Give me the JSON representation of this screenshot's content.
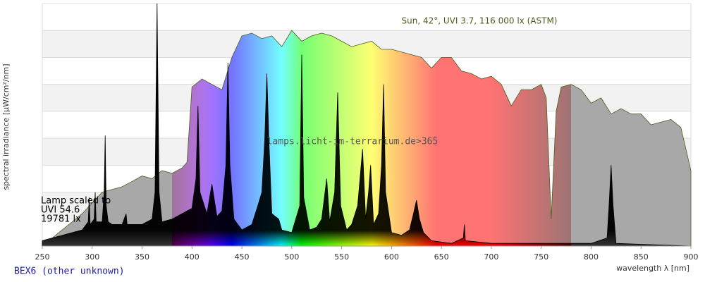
{
  "chart_data": {
    "type": "spectrum",
    "xlim": [
      250,
      900
    ],
    "xticks": [
      250,
      300,
      350,
      400,
      450,
      500,
      550,
      600,
      650,
      700,
      750,
      800,
      850,
      900
    ],
    "ylim": [
      0,
      9
    ],
    "yticks": [
      0,
      1,
      2,
      3,
      4,
      5,
      6,
      7,
      8,
      9
    ],
    "ytick_labels": false,
    "grid": "bands",
    "xlabel": "wavelength λ [nm]",
    "ylabel": "spectral irradiance [µW/cm²/nm]",
    "watermark": "lamps.licht-im-terrarium.de>365",
    "source": "BEX6 (other unknown)",
    "visible_range": [
      380,
      780
    ],
    "series": [
      {
        "label": "Sun, 42°, UVI 3.7, 116 000 lx (ASTM)",
        "color": "#4b5e1e",
        "x": [
          250,
          260,
          270,
          280,
          290,
          300,
          310,
          320,
          330,
          340,
          350,
          360,
          370,
          380,
          390,
          395,
          400,
          410,
          420,
          430,
          440,
          450,
          460,
          470,
          480,
          490,
          500,
          510,
          520,
          530,
          540,
          550,
          560,
          570,
          580,
          590,
          600,
          610,
          620,
          630,
          640,
          650,
          660,
          670,
          680,
          690,
          700,
          710,
          720,
          730,
          740,
          750,
          755,
          760,
          765,
          770,
          780,
          790,
          800,
          810,
          820,
          830,
          840,
          850,
          860,
          870,
          880,
          890,
          900
        ],
        "values": [
          0.1,
          0.3,
          0.6,
          0.9,
          1.2,
          1.6,
          2.0,
          2.1,
          2.2,
          2.4,
          2.6,
          2.5,
          2.8,
          2.7,
          2.9,
          3.1,
          5.9,
          6.2,
          6.0,
          5.8,
          7.0,
          7.8,
          7.9,
          7.7,
          7.8,
          7.4,
          8.0,
          7.6,
          7.8,
          7.9,
          7.8,
          7.6,
          7.4,
          7.5,
          7.6,
          7.3,
          7.3,
          7.2,
          7.1,
          7.0,
          6.6,
          7.0,
          7.0,
          6.5,
          6.4,
          6.2,
          6.3,
          6.0,
          5.2,
          5.8,
          5.8,
          6.0,
          5.5,
          1.0,
          5.0,
          5.9,
          6.0,
          5.8,
          5.3,
          5.5,
          4.9,
          5.1,
          4.9,
          4.9,
          4.5,
          4.6,
          4.7,
          4.4,
          2.8
        ]
      },
      {
        "label": [
          "Lamp scaled to",
          "UVI 54.6",
          "19781 lx"
        ],
        "color": "#000000",
        "x": [
          250,
          260,
          270,
          280,
          290,
          296,
          297,
          298,
          302,
          303,
          304,
          310,
          312,
          313,
          314,
          316,
          320,
          330,
          334,
          335,
          340,
          350,
          360,
          363,
          365,
          367,
          370,
          380,
          390,
          400,
          404,
          406,
          408,
          415,
          420,
          425,
          430,
          434,
          436,
          438,
          442,
          450,
          460,
          466,
          470,
          473,
          475,
          477,
          480,
          487,
          490,
          500,
          508,
          510,
          512,
          518,
          525,
          530,
          535,
          538,
          543,
          546,
          549,
          555,
          560,
          566,
          571,
          574,
          577,
          579,
          582,
          587,
          590,
          592,
          594,
          600,
          610,
          618,
          622,
          625,
          628,
          632,
          640,
          660,
          672,
          673,
          674,
          700,
          750,
          780,
          800,
          816,
          818,
          820,
          822,
          825,
          900
        ],
        "values": [
          0.2,
          0.3,
          0.4,
          0.5,
          0.6,
          0.9,
          1.8,
          0.8,
          1.0,
          2.0,
          0.9,
          0.9,
          2.0,
          4.1,
          1.5,
          0.9,
          0.8,
          0.8,
          1.2,
          0.8,
          0.8,
          0.8,
          1.0,
          2.0,
          9.0,
          2.0,
          0.9,
          1.0,
          1.2,
          1.4,
          2.5,
          5.2,
          2.0,
          1.2,
          2.3,
          1.1,
          1.3,
          3.0,
          6.8,
          3.0,
          1.0,
          0.6,
          0.8,
          1.5,
          2.0,
          4.0,
          6.4,
          4.0,
          1.2,
          1.0,
          0.6,
          0.5,
          1.5,
          7.1,
          1.8,
          0.6,
          0.7,
          1.0,
          2.5,
          0.9,
          2.0,
          5.7,
          1.5,
          0.6,
          0.8,
          1.5,
          3.6,
          1.0,
          2.0,
          3.0,
          0.8,
          1.2,
          3.0,
          6.0,
          2.0,
          0.5,
          0.4,
          0.6,
          1.2,
          1.7,
          1.0,
          0.5,
          0.2,
          0.1,
          0.3,
          0.8,
          0.2,
          0.1,
          0.1,
          0.1,
          0.1,
          0.3,
          1.5,
          3.0,
          1.5,
          0.1,
          0
        ]
      }
    ]
  }
}
